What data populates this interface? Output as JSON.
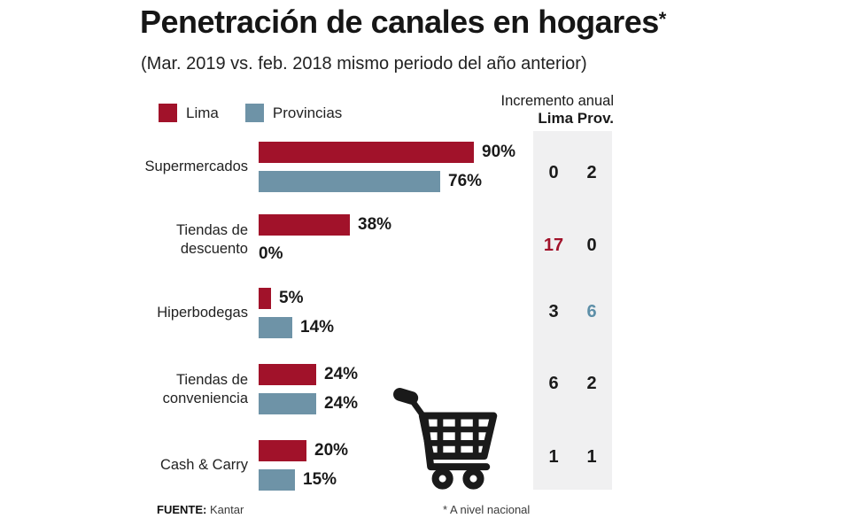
{
  "title": "Penetración de canales en hogares",
  "title_asterisk": "*",
  "subtitle": "(Mar. 2019 vs. feb. 2018 mismo periodo del año anterior)",
  "legend": {
    "lima": "Lima",
    "provincias": "Provincias"
  },
  "increment_header": {
    "line1": "Incremento anual",
    "line2": "Lima Prov."
  },
  "footer": {
    "source_label": "FUENTE:",
    "source_value": "Kantar",
    "note": "* A nivel nacional"
  },
  "colors": {
    "lima": "#A1122A",
    "provincias": "#6E93A7",
    "provincias_text": "#5D8FA8",
    "panel": "#F0F0F1",
    "ink": "#1A1A1A"
  },
  "groups": [
    {
      "label": "Supermercados",
      "lima": {
        "value": 90,
        "display": "90%"
      },
      "prov": {
        "value": 76,
        "display": "76%"
      },
      "inc_lima": "0",
      "inc_prov": "2"
    },
    {
      "label": "Tiendas de\ndescuento",
      "lima": {
        "value": 38,
        "display": "38%"
      },
      "prov": {
        "value": 0,
        "display": "0%"
      },
      "inc_lima": "17",
      "inc_prov": "0"
    },
    {
      "label": "Hiperbodegas",
      "lima": {
        "value": 5,
        "display": "5%"
      },
      "prov": {
        "value": 14,
        "display": "14%"
      },
      "inc_lima": "3",
      "inc_prov": "6"
    },
    {
      "label": "Tiendas de\nconveniencia",
      "lima": {
        "value": 24,
        "display": "24%"
      },
      "prov": {
        "value": 24,
        "display": "24%"
      },
      "inc_lima": "6",
      "inc_prov": "2"
    },
    {
      "label": "Cash & Carry",
      "lima": {
        "value": 20,
        "display": "20%"
      },
      "prov": {
        "value": 15,
        "display": "15%"
      },
      "inc_lima": "1",
      "inc_prov": "1"
    }
  ],
  "chart_data": {
    "type": "bar",
    "orientation": "horizontal",
    "title": "Penetración de canales en hogares*",
    "subtitle": "(Mar. 2019 vs. feb. 2018 mismo periodo del año anterior)",
    "categories": [
      "Supermercados",
      "Tiendas de descuento",
      "Hiperbodegas",
      "Tiendas de conveniencia",
      "Cash & Carry"
    ],
    "series": [
      {
        "name": "Lima",
        "color": "#A1122A",
        "unit": "%",
        "values": [
          90,
          38,
          5,
          24,
          20
        ]
      },
      {
        "name": "Provincias",
        "color": "#6E93A7",
        "unit": "%",
        "values": [
          76,
          0,
          14,
          24,
          15
        ]
      }
    ],
    "annual_increment_table": {
      "title": "Incremento anual",
      "columns": [
        "Lima",
        "Prov."
      ],
      "rows": [
        [
          0,
          2
        ],
        [
          17,
          0
        ],
        [
          3,
          6
        ],
        [
          6,
          2
        ],
        [
          1,
          1
        ]
      ],
      "highlights": [
        {
          "row": 1,
          "column": "Lima",
          "value": 17,
          "color": "#A1122A"
        },
        {
          "row": 2,
          "column": "Prov.",
          "value": 6,
          "color": "#5D8FA8"
        }
      ]
    },
    "xlim": [
      0,
      100
    ],
    "grid": false,
    "legend_position": "top-left",
    "source": "FUENTE: Kantar",
    "note": "* A nivel nacional"
  }
}
